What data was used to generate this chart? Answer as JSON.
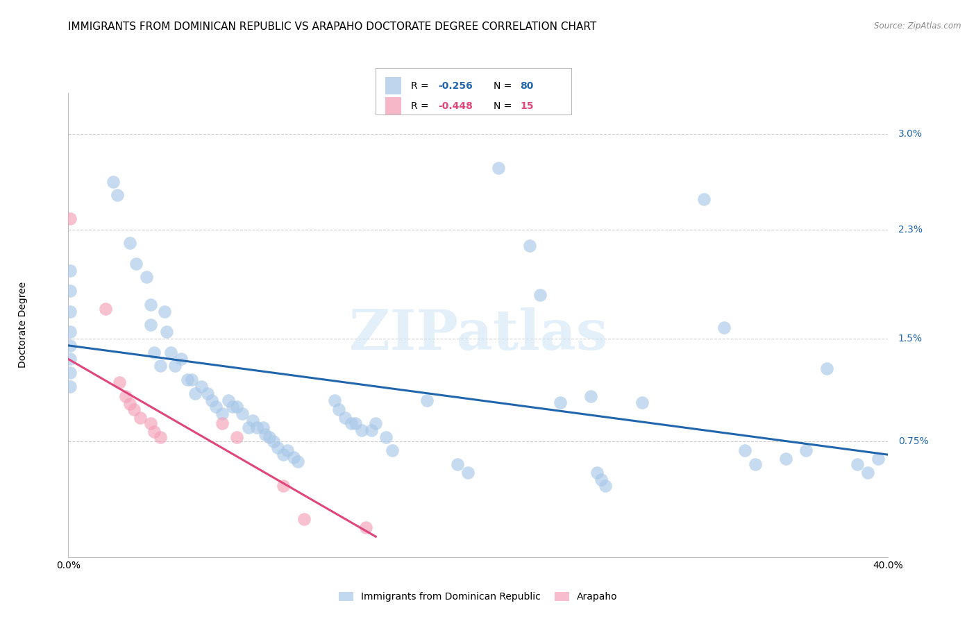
{
  "title": "IMMIGRANTS FROM DOMINICAN REPUBLIC VS ARAPAHO DOCTORATE DEGREE CORRELATION CHART",
  "source": "Source: ZipAtlas.com",
  "ylabel": "Doctorate Degree",
  "ytick_labels": [
    "3.0%",
    "2.3%",
    "1.5%",
    "0.75%"
  ],
  "ytick_values": [
    0.03,
    0.023,
    0.015,
    0.0075
  ],
  "xlim": [
    0.0,
    0.4
  ],
  "ylim": [
    -0.001,
    0.033
  ],
  "color_blue": "#a8c8e8",
  "color_pink": "#f4a0b8",
  "line_blue": "#2166ac",
  "line_pink": "#e0457b",
  "watermark": "ZIPatlas",
  "blue_points": [
    [
      0.001,
      0.02
    ],
    [
      0.001,
      0.0185
    ],
    [
      0.001,
      0.017
    ],
    [
      0.001,
      0.0155
    ],
    [
      0.001,
      0.0145
    ],
    [
      0.001,
      0.0135
    ],
    [
      0.001,
      0.0125
    ],
    [
      0.001,
      0.0115
    ],
    [
      0.022,
      0.0265
    ],
    [
      0.024,
      0.0255
    ],
    [
      0.03,
      0.022
    ],
    [
      0.033,
      0.0205
    ],
    [
      0.038,
      0.0195
    ],
    [
      0.04,
      0.0175
    ],
    [
      0.04,
      0.016
    ],
    [
      0.042,
      0.014
    ],
    [
      0.045,
      0.013
    ],
    [
      0.047,
      0.017
    ],
    [
      0.048,
      0.0155
    ],
    [
      0.05,
      0.014
    ],
    [
      0.052,
      0.013
    ],
    [
      0.055,
      0.0135
    ],
    [
      0.058,
      0.012
    ],
    [
      0.06,
      0.012
    ],
    [
      0.062,
      0.011
    ],
    [
      0.065,
      0.0115
    ],
    [
      0.068,
      0.011
    ],
    [
      0.07,
      0.0105
    ],
    [
      0.072,
      0.01
    ],
    [
      0.075,
      0.0095
    ],
    [
      0.078,
      0.0105
    ],
    [
      0.08,
      0.01
    ],
    [
      0.082,
      0.01
    ],
    [
      0.085,
      0.0095
    ],
    [
      0.088,
      0.0085
    ],
    [
      0.09,
      0.009
    ],
    [
      0.092,
      0.0085
    ],
    [
      0.095,
      0.0085
    ],
    [
      0.096,
      0.008
    ],
    [
      0.098,
      0.0078
    ],
    [
      0.1,
      0.0075
    ],
    [
      0.102,
      0.007
    ],
    [
      0.105,
      0.0065
    ],
    [
      0.107,
      0.0068
    ],
    [
      0.11,
      0.0063
    ],
    [
      0.112,
      0.006
    ],
    [
      0.13,
      0.0105
    ],
    [
      0.132,
      0.0098
    ],
    [
      0.135,
      0.0092
    ],
    [
      0.138,
      0.0088
    ],
    [
      0.14,
      0.0088
    ],
    [
      0.143,
      0.0083
    ],
    [
      0.148,
      0.0083
    ],
    [
      0.15,
      0.0088
    ],
    [
      0.155,
      0.0078
    ],
    [
      0.158,
      0.0068
    ],
    [
      0.175,
      0.0105
    ],
    [
      0.19,
      0.0058
    ],
    [
      0.195,
      0.0052
    ],
    [
      0.21,
      0.0275
    ],
    [
      0.225,
      0.0218
    ],
    [
      0.23,
      0.0182
    ],
    [
      0.24,
      0.0103
    ],
    [
      0.255,
      0.0108
    ],
    [
      0.258,
      0.0052
    ],
    [
      0.26,
      0.0047
    ],
    [
      0.262,
      0.0042
    ],
    [
      0.28,
      0.0103
    ],
    [
      0.31,
      0.0252
    ],
    [
      0.32,
      0.0158
    ],
    [
      0.33,
      0.0068
    ],
    [
      0.335,
      0.0058
    ],
    [
      0.35,
      0.0062
    ],
    [
      0.36,
      0.0068
    ],
    [
      0.37,
      0.0128
    ],
    [
      0.385,
      0.0058
    ],
    [
      0.39,
      0.0052
    ],
    [
      0.395,
      0.0062
    ]
  ],
  "pink_points": [
    [
      0.001,
      0.0238
    ],
    [
      0.018,
      0.0172
    ],
    [
      0.025,
      0.0118
    ],
    [
      0.028,
      0.0108
    ],
    [
      0.03,
      0.0102
    ],
    [
      0.032,
      0.0098
    ],
    [
      0.035,
      0.0092
    ],
    [
      0.04,
      0.0088
    ],
    [
      0.042,
      0.0082
    ],
    [
      0.045,
      0.0078
    ],
    [
      0.075,
      0.0088
    ],
    [
      0.082,
      0.0078
    ],
    [
      0.105,
      0.0042
    ],
    [
      0.115,
      0.0018
    ],
    [
      0.145,
      0.0012
    ]
  ],
  "blue_line_x": [
    0.0,
    0.4
  ],
  "blue_line_y": [
    0.0145,
    0.0065
  ],
  "pink_line_x": [
    0.0,
    0.15
  ],
  "pink_line_y": [
    0.0135,
    0.0005
  ],
  "gridline_y": [
    0.0075,
    0.015,
    0.023,
    0.03
  ],
  "background_color": "#ffffff",
  "title_fontsize": 11,
  "label_fontsize": 9,
  "tick_fontsize": 10
}
